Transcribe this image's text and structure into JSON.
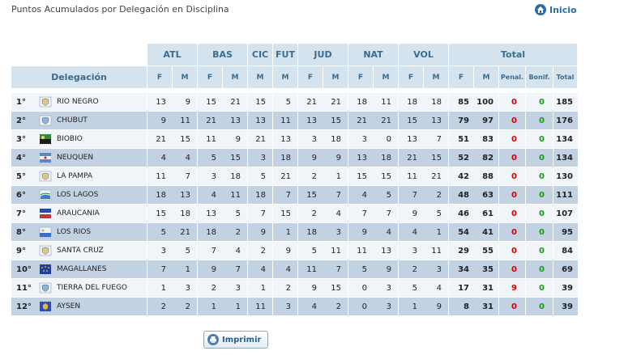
{
  "header": {
    "title": "Puntos Acumulados por Delegación en Disciplina",
    "home_label": "Inicio"
  },
  "table": {
    "disciplines": [
      "ATL",
      "BAS",
      "CIC",
      "FUT",
      "JUD",
      "NAT",
      "VOL"
    ],
    "total_label": "Total",
    "delegation_label": "Delegación",
    "sub_f": "F",
    "sub_m": "M",
    "cic_sub": "M",
    "fut_sub": "M",
    "penal_label": "Penal.",
    "bonif_label": "Bonif.",
    "total_col_label": "Total",
    "rows": [
      {
        "pos": "1°",
        "name": "RIO NEGRO",
        "flag": "shield-white",
        "atl": [
          "13",
          "9"
        ],
        "bas": [
          "15",
          "21"
        ],
        "cic": "15",
        "fut": "5",
        "jud": [
          "21",
          "21"
        ],
        "nat": [
          "18",
          "11"
        ],
        "vol": [
          "18",
          "18"
        ],
        "tf": "85",
        "tm": "100",
        "pen": "0",
        "bon": "0",
        "total": "185"
      },
      {
        "pos": "2°",
        "name": "CHUBUT",
        "flag": "shield-blue",
        "atl": [
          "9",
          "11"
        ],
        "bas": [
          "21",
          "13"
        ],
        "cic": "13",
        "fut": "11",
        "jud": [
          "13",
          "15"
        ],
        "nat": [
          "21",
          "21"
        ],
        "vol": [
          "15",
          "13"
        ],
        "tf": "79",
        "tm": "97",
        "pen": "0",
        "bon": "0",
        "total": "176"
      },
      {
        "pos": "3°",
        "name": "BIOBIO",
        "flag": "green-black",
        "atl": [
          "21",
          "15"
        ],
        "bas": [
          "11",
          "9"
        ],
        "cic": "21",
        "fut": "13",
        "jud": [
          "3",
          "18"
        ],
        "nat": [
          "3",
          "0"
        ],
        "vol": [
          "13",
          "7"
        ],
        "tf": "51",
        "tm": "83",
        "pen": "0",
        "bon": "0",
        "total": "134"
      },
      {
        "pos": "4°",
        "name": "NEUQUEN",
        "flag": "blue-star",
        "atl": [
          "4",
          "4"
        ],
        "bas": [
          "5",
          "15"
        ],
        "cic": "3",
        "fut": "18",
        "jud": [
          "9",
          "9"
        ],
        "nat": [
          "13",
          "18"
        ],
        "vol": [
          "21",
          "15"
        ],
        "tf": "52",
        "tm": "82",
        "pen": "0",
        "bon": "0",
        "total": "134"
      },
      {
        "pos": "5°",
        "name": "LA PAMPA",
        "flag": "shield-white",
        "atl": [
          "11",
          "7"
        ],
        "bas": [
          "3",
          "18"
        ],
        "cic": "5",
        "fut": "21",
        "jud": [
          "2",
          "1"
        ],
        "nat": [
          "15",
          "15"
        ],
        "vol": [
          "11",
          "21"
        ],
        "tf": "42",
        "tm": "88",
        "pen": "0",
        "bon": "0",
        "total": "130"
      },
      {
        "pos": "6°",
        "name": "LOS LAGOS",
        "flag": "blue-white",
        "atl": [
          "18",
          "13"
        ],
        "bas": [
          "4",
          "11"
        ],
        "cic": "18",
        "fut": "7",
        "jud": [
          "15",
          "7"
        ],
        "nat": [
          "4",
          "5"
        ],
        "vol": [
          "7",
          "2"
        ],
        "tf": "48",
        "tm": "63",
        "pen": "0",
        "bon": "0",
        "total": "111"
      },
      {
        "pos": "7°",
        "name": "ARAUCANIA",
        "flag": "red-blue",
        "atl": [
          "15",
          "18"
        ],
        "bas": [
          "13",
          "5"
        ],
        "cic": "7",
        "fut": "15",
        "jud": [
          "2",
          "4"
        ],
        "nat": [
          "7",
          "7"
        ],
        "vol": [
          "9",
          "5"
        ],
        "tf": "46",
        "tm": "61",
        "pen": "0",
        "bon": "0",
        "total": "107"
      },
      {
        "pos": "8°",
        "name": "LOS RIOS",
        "flag": "white-blue",
        "atl": [
          "5",
          "21"
        ],
        "bas": [
          "18",
          "2"
        ],
        "cic": "9",
        "fut": "1",
        "jud": [
          "18",
          "3"
        ],
        "nat": [
          "9",
          "4"
        ],
        "vol": [
          "4",
          "1"
        ],
        "tf": "54",
        "tm": "41",
        "pen": "0",
        "bon": "0",
        "total": "95"
      },
      {
        "pos": "9°",
        "name": "SANTA CRUZ",
        "flag": "shield-white",
        "atl": [
          "3",
          "5"
        ],
        "bas": [
          "7",
          "4"
        ],
        "cic": "2",
        "fut": "9",
        "jud": [
          "5",
          "11"
        ],
        "nat": [
          "11",
          "13"
        ],
        "vol": [
          "3",
          "11"
        ],
        "tf": "29",
        "tm": "55",
        "pen": "0",
        "bon": "0",
        "total": "84"
      },
      {
        "pos": "10°",
        "name": "MAGALLANES",
        "flag": "blue-stars",
        "atl": [
          "7",
          "1"
        ],
        "bas": [
          "9",
          "7"
        ],
        "cic": "4",
        "fut": "4",
        "jud": [
          "11",
          "7"
        ],
        "nat": [
          "5",
          "9"
        ],
        "vol": [
          "2",
          "3"
        ],
        "tf": "34",
        "tm": "35",
        "pen": "0",
        "bon": "0",
        "total": "69"
      },
      {
        "pos": "11°",
        "name": "TIERRA DEL FUEGO",
        "flag": "shield-blue",
        "atl": [
          "1",
          "3"
        ],
        "bas": [
          "2",
          "3"
        ],
        "cic": "1",
        "fut": "2",
        "jud": [
          "9",
          "15"
        ],
        "nat": [
          "0",
          "3"
        ],
        "vol": [
          "5",
          "4"
        ],
        "tf": "17",
        "tm": "31",
        "pen": "9",
        "bon": "0",
        "total": "39"
      },
      {
        "pos": "12°",
        "name": "AYSEN",
        "flag": "blue-gold",
        "atl": [
          "2",
          "2"
        ],
        "bas": [
          "1",
          "1"
        ],
        "cic": "11",
        "fut": "3",
        "jud": [
          "4",
          "2"
        ],
        "nat": [
          "0",
          "3"
        ],
        "vol": [
          "1",
          "9"
        ],
        "tf": "8",
        "tm": "31",
        "pen": "0",
        "bon": "0",
        "total": "39"
      }
    ]
  },
  "footer": {
    "print_label": "Imprimir"
  },
  "colors": {
    "header_bg": "#d5e3ee",
    "header_text": "#3a6c92",
    "row_odd": "#f1f4f8",
    "row_even": "#c3d2e2",
    "penalty": "#d40000",
    "bonus": "#1a9a1a"
  }
}
